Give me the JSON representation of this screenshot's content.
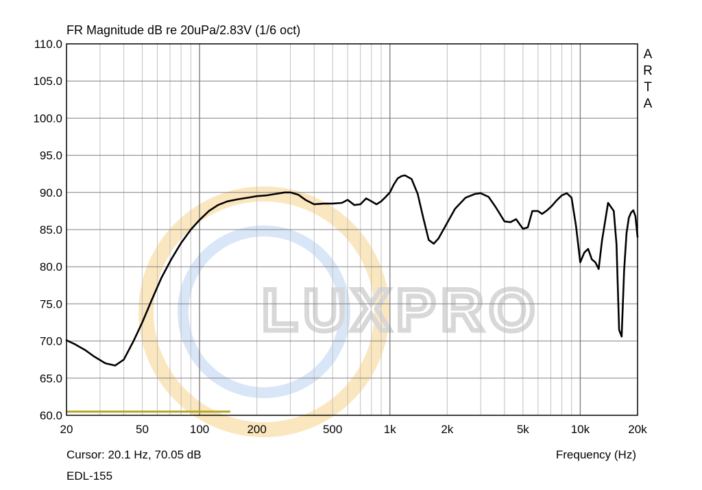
{
  "title": "FR Magnitude dB re 20uPa/2.83V (1/6 oct)",
  "brand_letters": [
    "A",
    "R",
    "T",
    "A"
  ],
  "cursor_readout": "Cursor: 20.1 Hz, 70.05 dB",
  "model": "EDL-155",
  "watermark": "LUXPRO",
  "colors": {
    "curve": "#000000",
    "grid_major": "#808080",
    "grid_minor": "#c0c0c0",
    "cursor_line": "#b5a823",
    "watermark_text": "#d8d8d8",
    "watermark_ring_outer": "#fbe7bf",
    "watermark_ring_inner": "#d9e6f7"
  },
  "chart_data": {
    "type": "line",
    "title": "FR Magnitude dB re 20uPa/2.83V (1/6 oct)",
    "xlabel": "Frequency (Hz)",
    "ylabel": "",
    "xscale": "log",
    "xlim": [
      20,
      20000
    ],
    "ylim": [
      60,
      110
    ],
    "grid": true,
    "x_tick_values": [
      20,
      50,
      100,
      200,
      500,
      1000,
      2000,
      5000,
      10000,
      20000
    ],
    "x_tick_labels": [
      "20",
      "50",
      "100",
      "200",
      "500",
      "1k",
      "2k",
      "5k",
      "10k",
      "20k"
    ],
    "y_tick_values": [
      60,
      65,
      70,
      75,
      80,
      85,
      90,
      95,
      100,
      105,
      110
    ],
    "y_tick_labels": [
      "60.0",
      "65.0",
      "70.0",
      "75.0",
      "80.0",
      "85.0",
      "90.0",
      "95.0",
      "100.0",
      "105.0",
      "110.0"
    ],
    "cursor": {
      "x_range": [
        20,
        145
      ],
      "y": 60.5
    },
    "series": [
      {
        "x": [
          20,
          22,
          25,
          28,
          32,
          36,
          40,
          45,
          50,
          56,
          63,
          71,
          80,
          90,
          100,
          112,
          125,
          140,
          160,
          180,
          200,
          225,
          250,
          280,
          300,
          330,
          360,
          400,
          450,
          500,
          560,
          600,
          650,
          700,
          750,
          800,
          850,
          900,
          950,
          1000,
          1050,
          1100,
          1150,
          1200,
          1300,
          1400,
          1500,
          1600,
          1700,
          1800,
          2000,
          2200,
          2500,
          2800,
          3000,
          3300,
          3600,
          4000,
          4300,
          4600,
          5000,
          5300,
          5600,
          6000,
          6300,
          6700,
          7100,
          7500,
          8000,
          8500,
          9000,
          9500,
          10000,
          10500,
          11000,
          11500,
          12000,
          12500,
          13000,
          14000,
          15000,
          15500,
          16000,
          16500,
          17000,
          17500,
          18000,
          18500,
          19000,
          19500,
          20000
        ],
        "y": [
          70.1,
          69.6,
          68.8,
          67.9,
          67.0,
          66.7,
          67.5,
          70.0,
          72.5,
          75.5,
          78.5,
          81.0,
          83.2,
          85.0,
          86.3,
          87.5,
          88.3,
          88.8,
          89.1,
          89.3,
          89.5,
          89.6,
          89.8,
          90.0,
          90.0,
          89.7,
          89.0,
          88.4,
          88.5,
          88.5,
          88.6,
          89.0,
          88.3,
          88.4,
          89.2,
          88.8,
          88.4,
          88.8,
          89.4,
          90.0,
          91.1,
          91.9,
          92.2,
          92.3,
          91.8,
          89.8,
          86.5,
          83.6,
          83.1,
          83.8,
          85.9,
          87.8,
          89.3,
          89.8,
          89.9,
          89.4,
          88.0,
          86.1,
          86.0,
          86.4,
          85.1,
          85.3,
          87.5,
          87.5,
          87.1,
          87.6,
          88.2,
          88.9,
          89.6,
          89.9,
          89.3,
          85.5,
          80.6,
          81.9,
          82.4,
          81.0,
          80.6,
          79.7,
          83.5,
          88.6,
          87.5,
          83.0,
          71.5,
          70.6,
          79.5,
          84.5,
          86.6,
          87.3,
          87.6,
          86.8,
          84.0
        ]
      }
    ]
  }
}
